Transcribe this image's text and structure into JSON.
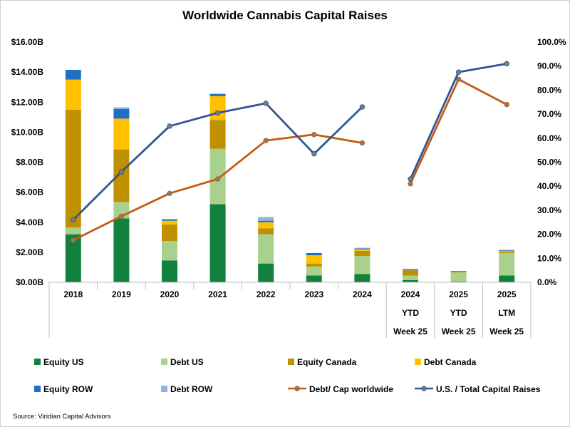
{
  "chart_data": {
    "type": "bar",
    "stacked": true,
    "title": "Worldwide Cannabis Capital Raises",
    "categories": [
      [
        "2018"
      ],
      [
        "2019"
      ],
      [
        "2020"
      ],
      [
        "2021"
      ],
      [
        "2022"
      ],
      [
        "2023"
      ],
      [
        "2024"
      ],
      [
        "2024",
        "YTD",
        "Week 25"
      ],
      [
        "2025",
        "YTD",
        "Week 25"
      ],
      [
        "2025",
        "LTM",
        "Week 25"
      ]
    ],
    "y_left": {
      "min": 0,
      "max": 16,
      "step": 2,
      "labels": [
        "$0.00B",
        "$2.00B",
        "$4.00B",
        "$6.00B",
        "$8.00B",
        "$10.00B",
        "$12.00B",
        "$14.00B",
        "$16.00B"
      ]
    },
    "y_right": {
      "min": 0,
      "max": 100,
      "step": 10,
      "labels": [
        "0.0%",
        "10.0%",
        "20.0%",
        "30.0%",
        "40.0%",
        "50.0%",
        "60.0%",
        "70.0%",
        "80.0%",
        "90.0%",
        "100.0%"
      ]
    },
    "bar_series": [
      {
        "name": "Equity US",
        "color": "#12813e",
        "values": [
          3.2,
          4.25,
          1.45,
          5.2,
          1.25,
          0.45,
          0.55,
          0.15,
          0.05,
          0.45
        ]
      },
      {
        "name": "Debt US",
        "color": "#a9d18e",
        "values": [
          0.45,
          1.1,
          1.3,
          3.7,
          1.95,
          0.6,
          1.2,
          0.3,
          0.6,
          1.5
        ]
      },
      {
        "name": "Equity Canada",
        "color": "#bf9000",
        "values": [
          7.85,
          3.5,
          1.1,
          1.9,
          0.4,
          0.2,
          0.35,
          0.35,
          0.05,
          0.1
        ]
      },
      {
        "name": "Debt Canada",
        "color": "#ffc000",
        "values": [
          2.0,
          2.05,
          0.25,
          1.6,
          0.4,
          0.55,
          0.1,
          0.0,
          0.0,
          0.05
        ]
      },
      {
        "name": "Equity ROW",
        "color": "#1f6fc5",
        "values": [
          0.65,
          0.65,
          0.1,
          0.15,
          0.1,
          0.15,
          0.05,
          0.05,
          0.05,
          0.05
        ]
      },
      {
        "name": "Debt ROW",
        "color": "#8fb4e3",
        "values": [
          0.0,
          0.1,
          0.0,
          0.0,
          0.25,
          0.0,
          0.05,
          0.05,
          0.0,
          0.0
        ]
      }
    ],
    "line_series": [
      {
        "name": "Debt/ Cap worldwide",
        "color": "#c55a11",
        "axis": "right",
        "values": [
          17.5,
          27.5,
          37,
          43,
          59,
          61.5,
          58,
          41,
          84.5,
          74
        ]
      },
      {
        "name": "U.S. / Total Capital Raises",
        "color": "#2f5597",
        "axis": "right",
        "values": [
          26,
          46,
          65,
          70.5,
          74.5,
          53.5,
          73,
          43,
          87.5,
          91
        ]
      }
    ],
    "line_break_after_index": 6,
    "legend_position": "bottom",
    "grid": false,
    "source": "Source: Viridian Capital Advisors"
  }
}
